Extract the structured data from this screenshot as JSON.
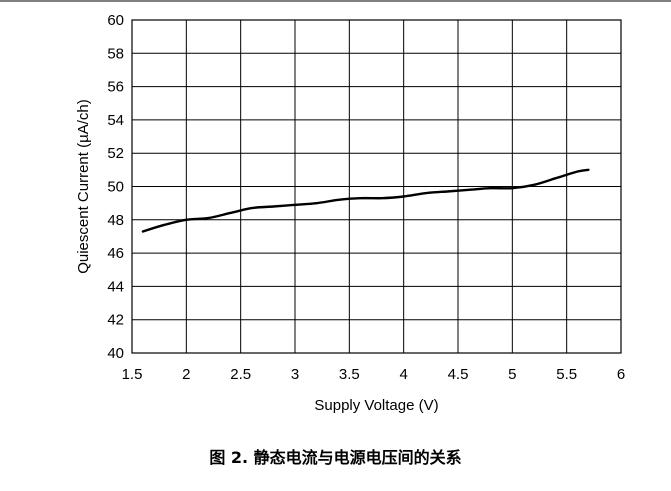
{
  "caption": "图 2. 静态电流与电源电压间的关系",
  "chart_data": {
    "type": "line",
    "xlabel": "Supply Voltage (V)",
    "ylabel": "Quiescent Current (µA/ch)",
    "xlim": [
      1.5,
      6
    ],
    "ylim": [
      40,
      60
    ],
    "x_ticks": [
      "1.5",
      "2",
      "2.5",
      "3",
      "3.5",
      "4",
      "4.5",
      "5",
      "5.5",
      "6"
    ],
    "y_ticks": [
      "40",
      "42",
      "44",
      "46",
      "48",
      "50",
      "52",
      "54",
      "56",
      "58",
      "60"
    ],
    "grid": true,
    "series": [
      {
        "x": [
          1.6,
          1.8,
          2.0,
          2.2,
          2.4,
          2.6,
          2.8,
          3.0,
          3.2,
          3.4,
          3.6,
          3.8,
          4.0,
          4.2,
          4.4,
          4.6,
          4.8,
          5.0,
          5.2,
          5.4,
          5.6,
          5.7
        ],
        "y": [
          47.3,
          47.7,
          48.0,
          48.1,
          48.4,
          48.7,
          48.8,
          48.9,
          49.0,
          49.2,
          49.3,
          49.3,
          49.4,
          49.6,
          49.7,
          49.8,
          49.9,
          49.9,
          50.1,
          50.5,
          50.9,
          51.0
        ]
      }
    ]
  }
}
